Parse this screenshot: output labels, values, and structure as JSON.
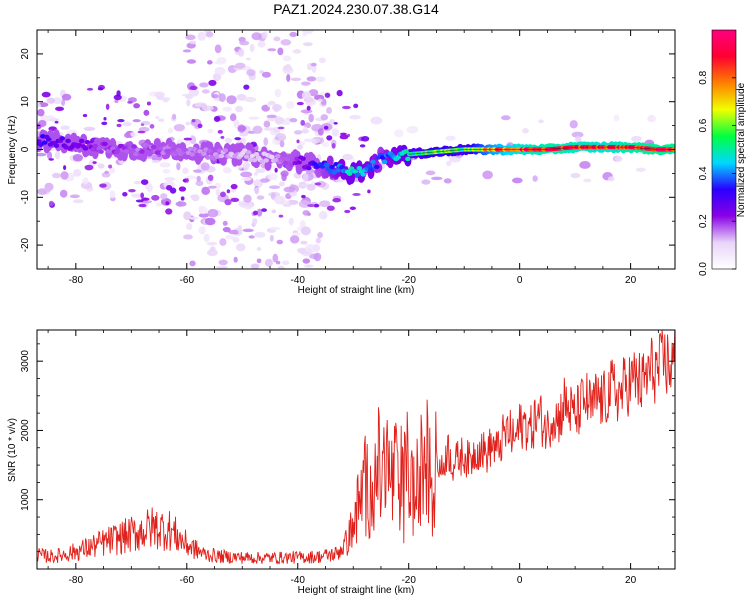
{
  "title": "PAZ1.2024.230.07.38.G14",
  "chart_data": [
    {
      "type": "heatmap",
      "xlabel": "Height of straight line (km)",
      "ylabel": "Frequency (Hz)",
      "xlim": [
        -87,
        28
      ],
      "ylim": [
        -25,
        25
      ],
      "xticks": [
        -80,
        -60,
        -40,
        -20,
        0,
        20
      ],
      "yticks": [
        -20,
        -10,
        0,
        10,
        20
      ],
      "colorbar": {
        "label": "Normalized spectral amplitude",
        "range": [
          0,
          1
        ],
        "ticks": [
          0.0,
          0.2,
          0.4,
          0.6,
          0.8
        ],
        "tick_labels": [
          "0.0",
          "0.2",
          "0.4",
          "0.6",
          "0.8"
        ],
        "colormap": [
          "#ffffff",
          "#e8d4f8",
          "#8a00e6",
          "#2a00ff",
          "#00d8ff",
          "#00ff40",
          "#f0ff00",
          "#ff8000",
          "#ff0030",
          "#ff0080"
        ]
      },
      "ridge": {
        "x": [
          -87,
          -80,
          -75,
          -70,
          -65,
          -60,
          -55,
          -50,
          -45,
          -40,
          -35,
          -30,
          -27,
          -25,
          -20,
          -15,
          -10,
          -5,
          0,
          5,
          10,
          15,
          20,
          25,
          28
        ],
        "frequency": [
          2,
          1,
          0.5,
          0,
          0,
          0,
          -1,
          -1,
          -2,
          -2.5,
          -3.5,
          -5,
          -4,
          -2,
          -1,
          -0.5,
          0,
          0,
          0,
          0,
          0.5,
          0.5,
          0.5,
          0,
          0
        ],
        "amplitude": [
          0.3,
          0.25,
          0.2,
          0.18,
          0.18,
          0.16,
          0.15,
          0.12,
          0.12,
          0.2,
          0.35,
          0.45,
          0.42,
          0.35,
          0.5,
          0.6,
          0.55,
          0.75,
          0.85,
          0.9,
          0.88,
          0.85,
          0.9,
          0.92,
          0.92
        ]
      },
      "grid": false
    },
    {
      "type": "line",
      "xlabel": "Height of straight line (km)",
      "ylabel": "SNR (10 * v/v)",
      "xlim": [
        -87,
        28
      ],
      "ylim": [
        0,
        3450
      ],
      "xticks": [
        -80,
        -60,
        -40,
        -20,
        0,
        20
      ],
      "yticks": [
        1000,
        2000,
        3000
      ],
      "series": [
        {
          "color": "#e0201a",
          "x": [
            -87,
            -84,
            -81,
            -78,
            -75,
            -72,
            -69,
            -66,
            -63,
            -60,
            -57,
            -54,
            -51,
            -48,
            -45,
            -42,
            -39,
            -36,
            -33,
            -31,
            -30,
            -29,
            -28,
            -27,
            -26,
            -25,
            -24,
            -23,
            -22,
            -21,
            -20,
            -19,
            -18,
            -17,
            -16,
            -15,
            -14,
            -13,
            -12,
            -11,
            -10,
            -9,
            -8,
            -7,
            -6,
            -5,
            -4,
            -3,
            -2,
            -1,
            0,
            1,
            2,
            3,
            4,
            5,
            6,
            7,
            8,
            9,
            10,
            11,
            12,
            13,
            14,
            15,
            16,
            17,
            18,
            19,
            20,
            21,
            22,
            23,
            24,
            25,
            26,
            27,
            28
          ],
          "values": [
            200,
            180,
            230,
            300,
            380,
            450,
            520,
            600,
            560,
            350,
            220,
            180,
            170,
            160,
            160,
            165,
            170,
            180,
            220,
            400,
            700,
            900,
            1200,
            1100,
            1600,
            1300,
            1500,
            1250,
            1400,
            1200,
            1500,
            1000,
            1300,
            1700,
            1200,
            1600,
            1400,
            1750,
            1500,
            1600,
            1650,
            1550,
            1700,
            1750,
            1650,
            1800,
            1700,
            1900,
            2000,
            1850,
            2050,
            2100,
            2000,
            2200,
            2150,
            2000,
            2250,
            2150,
            2400,
            2300,
            2200,
            2350,
            2450,
            2300,
            2500,
            2400,
            2550,
            2600,
            2500,
            2650,
            2700,
            2750,
            2650,
            2800,
            2900,
            2850,
            3000,
            2950,
            3000
          ]
        }
      ],
      "grid": false
    }
  ]
}
